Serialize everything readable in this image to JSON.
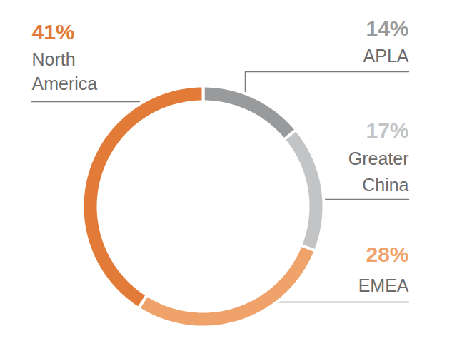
{
  "chart_data": {
    "type": "pie",
    "categories": [
      "APLA",
      "Greater China",
      "EMEA",
      "North America"
    ],
    "values": [
      14,
      17,
      28,
      41
    ],
    "value_labels": [
      "14%",
      "17%",
      "28%",
      "41%"
    ],
    "colors": [
      "#999a9c",
      "#c3c4c6",
      "#f0a26b",
      "#e17b37"
    ],
    "data_labels": true
  }
}
